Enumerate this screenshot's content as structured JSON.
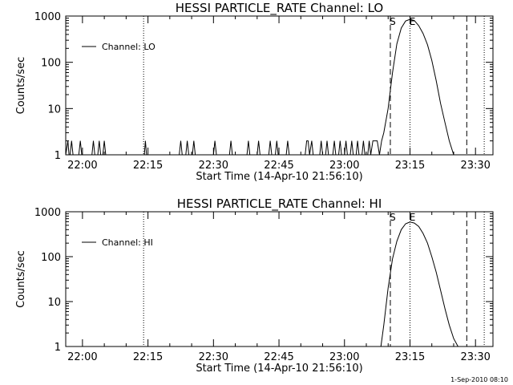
{
  "footer": {
    "timestamp": "1-Sep-2010 08:10"
  },
  "chart_data": [
    {
      "type": "line",
      "title": "HESSI PARTICLE_RATE Channel: LO",
      "xlabel": "Start Time (14-Apr-10 21:56:10)",
      "ylabel": "Counts/sec",
      "yscale": "log",
      "ylim": [
        1,
        1000
      ],
      "xlim": [
        "21:56:10",
        "23:34:00"
      ],
      "ytick_labels": [
        "1",
        "10",
        "100",
        "1000"
      ],
      "xtick_labels": [
        "22:00",
        "22:15",
        "22:30",
        "22:45",
        "23:00",
        "23:15",
        "23:30"
      ],
      "legend": {
        "position": "top-left",
        "entries": [
          "Channel: LO"
        ]
      },
      "grid": false,
      "markers": {
        "dotted": [
          "22:14:00",
          "23:15:00",
          "23:32:00"
        ],
        "dashed": [
          "23:10:30",
          "23:28:00"
        ],
        "labels": [
          {
            "text": "S",
            "at": "23:10:30"
          },
          {
            "text": "E",
            "at": "23:15:00"
          }
        ]
      },
      "series": [
        {
          "name": "Channel: LO",
          "x": [
            "21:56:10",
            "21:56:40",
            "21:56:55",
            "21:57:10",
            "21:57:30",
            "21:57:50",
            "21:59:10",
            "21:59:30",
            "21:59:50",
            "22:02:10",
            "22:02:30",
            "22:02:50",
            "22:03:30",
            "22:03:50",
            "22:04:10",
            "22:04:40",
            "22:05:00",
            "22:05:20",
            "22:14:10",
            "22:14:25",
            "22:14:40",
            "22:22:10",
            "22:22:30",
            "22:22:50",
            "22:23:40",
            "22:24:00",
            "22:24:20",
            "22:25:10",
            "22:25:30",
            "22:25:50",
            "22:30:00",
            "22:30:20",
            "22:30:40",
            "22:33:40",
            "22:34:00",
            "22:34:20",
            "22:37:40",
            "22:38:00",
            "22:38:20",
            "22:40:00",
            "22:40:20",
            "22:40:40",
            "22:42:40",
            "22:43:00",
            "22:43:20",
            "22:44:10",
            "22:44:30",
            "22:44:50",
            "22:46:40",
            "22:47:00",
            "22:47:20",
            "22:51:00",
            "22:51:20",
            "22:51:40",
            "22:52:00",
            "22:52:30",
            "22:52:50",
            "22:54:20",
            "22:54:40",
            "22:55:00",
            "22:55:40",
            "22:56:00",
            "22:56:20",
            "22:57:20",
            "22:57:40",
            "22:58:00",
            "22:58:40",
            "22:59:00",
            "22:59:20",
            "23:00:00",
            "23:00:20",
            "23:00:40",
            "23:01:20",
            "23:01:40",
            "23:02:00",
            "23:02:40",
            "23:03:00",
            "23:03:20",
            "23:04:00",
            "23:04:20",
            "23:04:40",
            "23:05:20",
            "23:05:40",
            "23:06:00",
            "23:06:30",
            "23:07:00",
            "23:07:30",
            "23:08:00",
            "23:08:30",
            "23:09:00",
            "23:10:00",
            "23:11:00",
            "23:12:00",
            "23:13:00",
            "23:14:00",
            "23:15:00",
            "23:16:00",
            "23:17:00",
            "23:18:00",
            "23:19:00",
            "23:20:00",
            "23:21:00",
            "23:22:00",
            "23:23:00",
            "23:24:00",
            "23:25:00",
            "23:26:00",
            "23:27:00",
            "23:28:00"
          ],
          "y": [
            1,
            2,
            1,
            1,
            2,
            1,
            1,
            2,
            1,
            1,
            2,
            1,
            1,
            2,
            1,
            1,
            2,
            1,
            1,
            2,
            1,
            1,
            2,
            1,
            1,
            2,
            1,
            1,
            2,
            1,
            1,
            2,
            1,
            1,
            2,
            1,
            1,
            2,
            1,
            1,
            2,
            1,
            1,
            2,
            1,
            1,
            2,
            1,
            1,
            2,
            1,
            1,
            2,
            2,
            1,
            2,
            1,
            1,
            2,
            1,
            1,
            2,
            1,
            1,
            2,
            1,
            1,
            2,
            1,
            1,
            2,
            1,
            1,
            2,
            1,
            1,
            2,
            1,
            1,
            2,
            1,
            1,
            2,
            1,
            2,
            2,
            2,
            1,
            2,
            3,
            10,
            60,
            250,
            550,
            780,
            850,
            800,
            620,
            420,
            240,
            110,
            40,
            13,
            5,
            2,
            1,
            1,
            1,
            1
          ]
        }
      ]
    },
    {
      "type": "line",
      "title": "HESSI PARTICLE_RATE Channel: HI",
      "xlabel": "Start Time (14-Apr-10 21:56:10)",
      "ylabel": "Counts/sec",
      "yscale": "log",
      "ylim": [
        1,
        1000
      ],
      "xlim": [
        "21:56:10",
        "23:34:00"
      ],
      "ytick_labels": [
        "1",
        "10",
        "100",
        "1000"
      ],
      "xtick_labels": [
        "22:00",
        "22:15",
        "22:30",
        "22:45",
        "23:00",
        "23:15",
        "23:30"
      ],
      "legend": {
        "position": "top-left",
        "entries": [
          "Channel: HI"
        ]
      },
      "grid": false,
      "markers": {
        "dotted": [
          "22:14:00",
          "23:15:00",
          "23:32:00"
        ],
        "dashed": [
          "23:10:30",
          "23:28:00"
        ],
        "labels": [
          {
            "text": "S",
            "at": "23:10:30"
          },
          {
            "text": "E",
            "at": "23:15:00"
          }
        ]
      },
      "series": [
        {
          "name": "Channel: HI",
          "x": [
            "23:08:20",
            "23:09:00",
            "23:10:00",
            "23:11:00",
            "23:12:00",
            "23:13:00",
            "23:14:00",
            "23:15:00",
            "23:16:00",
            "23:17:00",
            "23:18:00",
            "23:19:00",
            "23:20:00",
            "23:21:00",
            "23:22:00",
            "23:23:00",
            "23:24:00",
            "23:25:00",
            "23:26:00"
          ],
          "y": [
            1,
            3,
            20,
            90,
            220,
            400,
            540,
            590,
            560,
            470,
            330,
            200,
            100,
            45,
            18,
            7,
            3,
            1.5,
            1
          ]
        }
      ]
    }
  ]
}
